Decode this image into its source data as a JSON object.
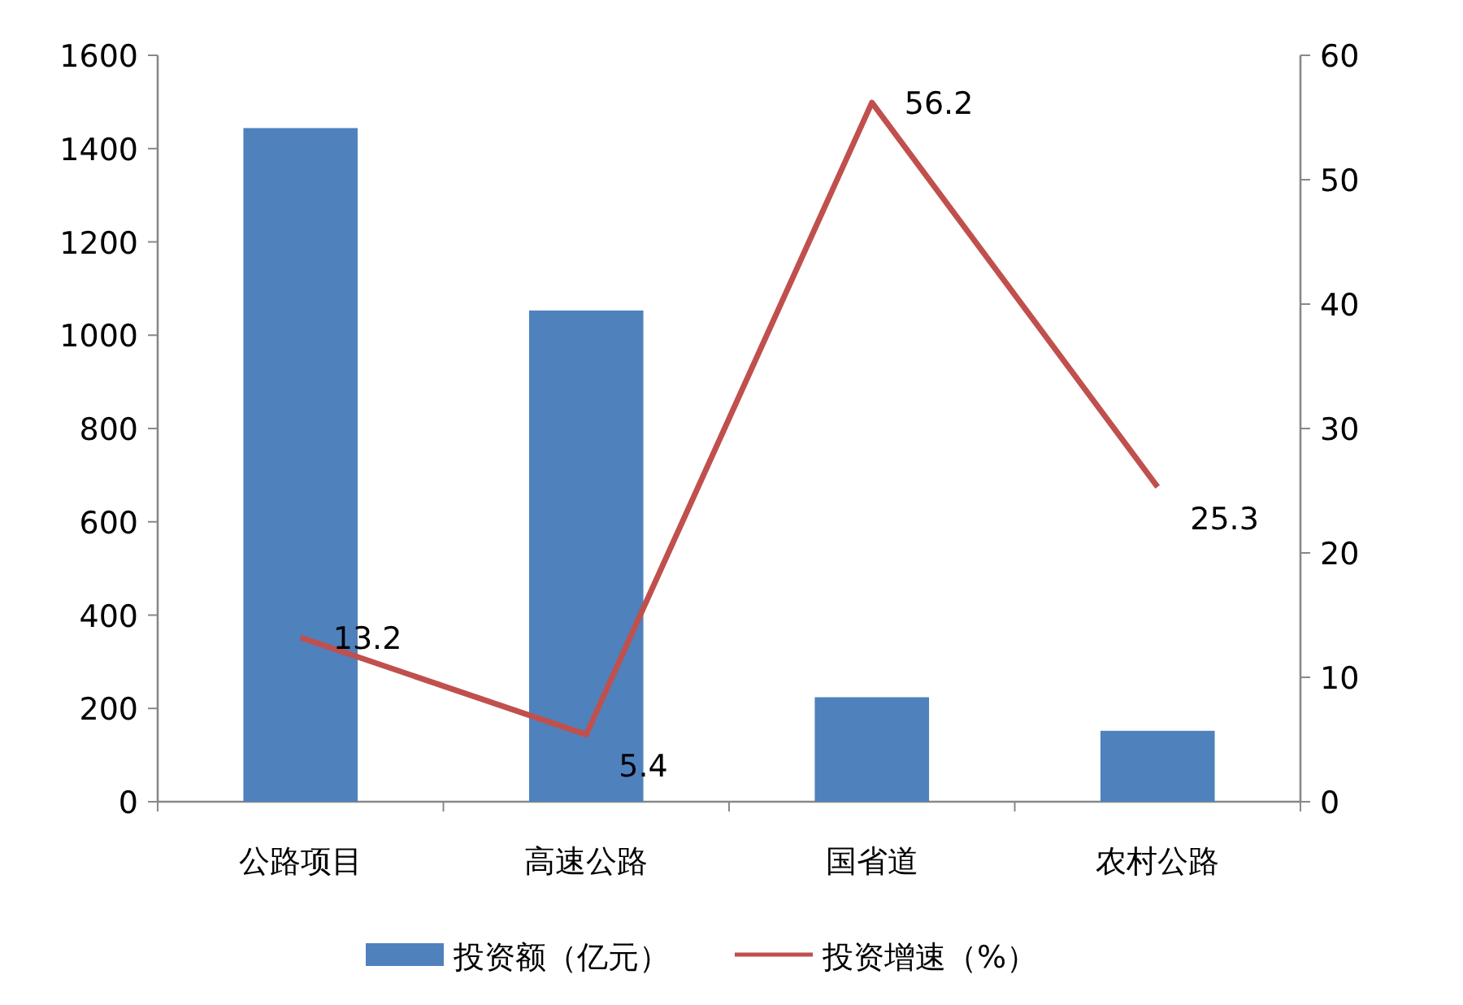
{
  "chart_data": {
    "type": "bar",
    "categories": [
      "公路项目",
      "高速公路",
      "国省道",
      "农村公路"
    ],
    "series": [
      {
        "name": "投资额（亿元）",
        "color": "#4f81bd",
        "values": [
          1444,
          1053,
          224,
          152
        ]
      },
      {
        "name": "投资增速（%）",
        "type": "line",
        "axis": "y2",
        "color": "#c0504d",
        "values": [
          13.2,
          5.4,
          56.2,
          25.3
        ],
        "value_labels": [
          "13.2",
          "5.4",
          "56.2",
          "25.3"
        ]
      }
    ],
    "ylim": [
      0,
      1600
    ],
    "yticks": [
      0,
      200,
      400,
      600,
      800,
      1000,
      1200,
      1400,
      1600
    ],
    "y2lim": [
      0,
      60
    ],
    "y2ticks": [
      0,
      10,
      20,
      30,
      40,
      50,
      60
    ],
    "legend": "bottom",
    "grid": false
  }
}
